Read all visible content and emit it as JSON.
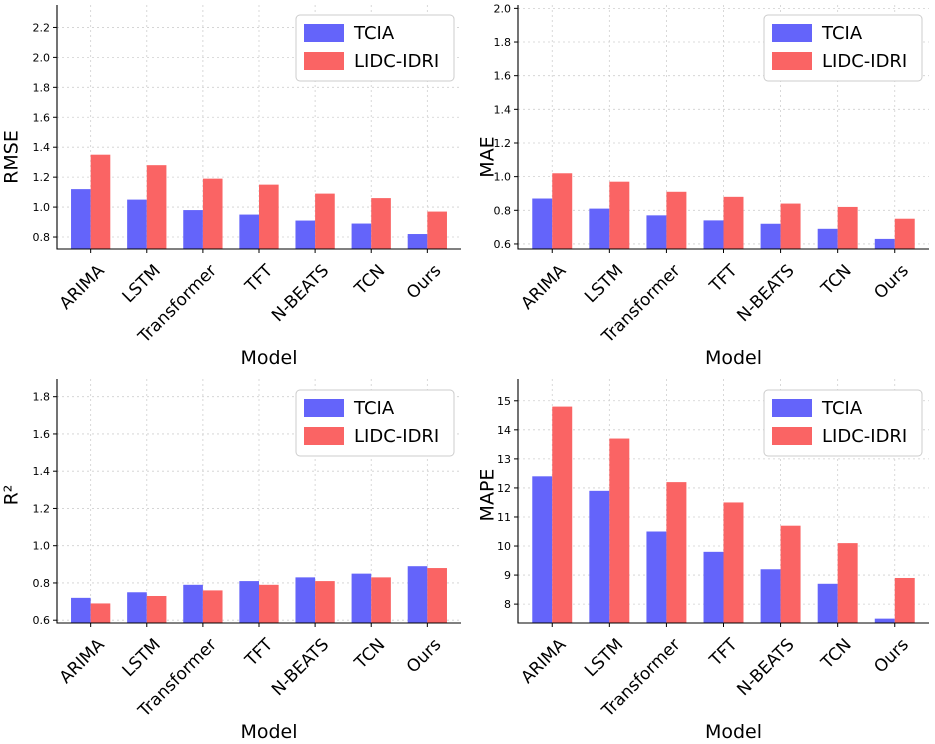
{
  "chart_data": [
    {
      "type": "bar",
      "ylabel": "RMSE",
      "xlabel": "Model",
      "categories": [
        "ARIMA",
        "LSTM",
        "Transformer",
        "TFT",
        "N-BEATS",
        "TCN",
        "Ours"
      ],
      "series": [
        {
          "name": "TCIA",
          "color": "#6464fa",
          "values": [
            1.12,
            1.05,
            0.98,
            0.95,
            0.91,
            0.89,
            0.82
          ]
        },
        {
          "name": "LIDC-IDRI",
          "color": "#fa6464",
          "values": [
            1.35,
            1.28,
            1.19,
            1.15,
            1.09,
            1.06,
            0.97
          ]
        }
      ],
      "ylim": [
        0.72,
        2.35
      ],
      "yticks": [
        "0.8",
        "1.0",
        "1.2",
        "1.4",
        "1.6",
        "1.8",
        "2.0",
        "2.2"
      ],
      "grid": true,
      "legend": "upper-right"
    },
    {
      "type": "bar",
      "ylabel": "MAE",
      "xlabel": "Model",
      "categories": [
        "ARIMA",
        "LSTM",
        "Transformer",
        "TFT",
        "N-BEATS",
        "TCN",
        "Ours"
      ],
      "series": [
        {
          "name": "TCIA",
          "color": "#6464fa",
          "values": [
            0.87,
            0.81,
            0.77,
            0.74,
            0.72,
            0.69,
            0.63
          ]
        },
        {
          "name": "LIDC-IDRI",
          "color": "#fa6464",
          "values": [
            1.02,
            0.97,
            0.91,
            0.88,
            0.84,
            0.82,
            0.75
          ]
        }
      ],
      "ylim": [
        0.57,
        2.02
      ],
      "yticks": [
        "0.6",
        "0.8",
        "1.0",
        "1.2",
        "1.4",
        "1.6",
        "1.8",
        "2.0"
      ],
      "grid": true,
      "legend": "upper-right"
    },
    {
      "type": "bar",
      "ylabel": "R²",
      "xlabel": "Model",
      "categories": [
        "ARIMA",
        "LSTM",
        "Transformer",
        "TFT",
        "N-BEATS",
        "TCN",
        "Ours"
      ],
      "series": [
        {
          "name": "TCIA",
          "color": "#6464fa",
          "values": [
            0.72,
            0.75,
            0.79,
            0.81,
            0.83,
            0.85,
            0.89
          ]
        },
        {
          "name": "LIDC-IDRI",
          "color": "#fa6464",
          "values": [
            0.69,
            0.73,
            0.76,
            0.79,
            0.81,
            0.83,
            0.88
          ]
        }
      ],
      "ylim": [
        0.585,
        1.895
      ],
      "yticks": [
        "0.6",
        "0.8",
        "1.0",
        "1.2",
        "1.4",
        "1.6",
        "1.8"
      ],
      "grid": true,
      "legend": "upper-right"
    },
    {
      "type": "bar",
      "ylabel": "MAPE",
      "xlabel": "Model",
      "categories": [
        "ARIMA",
        "LSTM",
        "Transformer",
        "TFT",
        "N-BEATS",
        "TCN",
        "Ours"
      ],
      "series": [
        {
          "name": "TCIA",
          "color": "#6464fa",
          "values": [
            12.4,
            11.9,
            10.5,
            9.8,
            9.2,
            8.7,
            7.5
          ]
        },
        {
          "name": "LIDC-IDRI",
          "color": "#fa6464",
          "values": [
            14.8,
            13.7,
            12.2,
            11.5,
            10.7,
            10.1,
            8.9
          ]
        }
      ],
      "ylim": [
        7.35,
        15.75
      ],
      "yticks": [
        "8",
        "9",
        "10",
        "11",
        "12",
        "13",
        "14",
        "15"
      ],
      "grid": true,
      "legend": "upper-right"
    }
  ]
}
